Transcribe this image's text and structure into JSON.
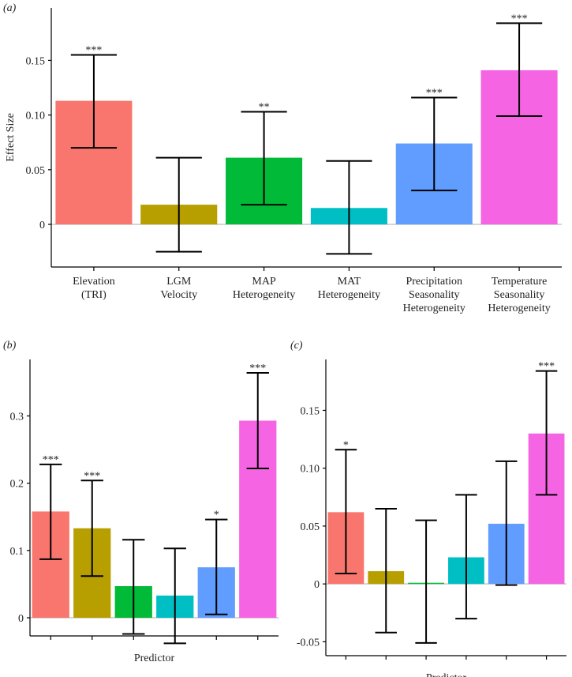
{
  "chart_data": [
    {
      "type": "bar",
      "panel_label": "(a)",
      "ylabel": "Effect Size",
      "categories": [
        [
          "Elevation",
          "(TRI)"
        ],
        [
          "LGM",
          "Velocity"
        ],
        [
          "MAP",
          "Heterogeneity"
        ],
        [
          "MAT",
          "Heterogeneity"
        ],
        [
          "Precipitation",
          "Seasonality",
          "Heterogeneity"
        ],
        [
          "Temperature",
          "Seasonality",
          "Heterogeneity"
        ]
      ],
      "values": [
        0.113,
        0.018,
        0.061,
        0.015,
        0.074,
        0.141
      ],
      "ci_low": [
        0.07,
        -0.025,
        0.018,
        -0.027,
        0.031,
        0.099
      ],
      "ci_high": [
        0.155,
        0.061,
        0.103,
        0.058,
        0.116,
        0.184
      ],
      "annotations": [
        "***",
        null,
        "**",
        null,
        "***",
        "***"
      ],
      "colors": [
        "#F8766D",
        "#B79F00",
        "#00BA38",
        "#00BFC4",
        "#619CFF",
        "#F564E3"
      ],
      "ylim": [
        -0.039,
        0.198
      ],
      "yticks": [
        0,
        0.05,
        {
          "value": 0.1,
          "label": "0.10"
        },
        0.15
      ]
    },
    {
      "type": "bar",
      "panel_label": "(b)",
      "ylabel": "Effect Size",
      "xlabel": "Predictor",
      "categories": [
        null,
        null,
        null,
        null,
        null,
        null
      ],
      "values": [
        0.158,
        0.133,
        0.047,
        0.033,
        0.075,
        0.293
      ],
      "ci_low": [
        0.087,
        0.062,
        -0.024,
        -0.038,
        0.005,
        0.222
      ],
      "ci_high": [
        0.228,
        0.204,
        0.116,
        0.103,
        0.146,
        0.364
      ],
      "annotations": [
        "***",
        "***",
        null,
        null,
        "*",
        "***"
      ],
      "colors": [
        "#F8766D",
        "#B79F00",
        "#00BA38",
        "#00BFC4",
        "#619CFF",
        "#F564E3"
      ],
      "ylim": [
        -0.027,
        0.384
      ],
      "yticks": [
        0,
        0.1,
        0.2,
        0.3
      ]
    },
    {
      "type": "bar",
      "panel_label": "(c)",
      "xlabel": "Predictor",
      "categories": [
        null,
        null,
        null,
        null,
        null,
        null
      ],
      "values": [
        0.062,
        0.011,
        0.001,
        0.023,
        0.052,
        0.13
      ],
      "ci_low": [
        0.009,
        -0.042,
        -0.051,
        -0.03,
        -0.001,
        0.077
      ],
      "ci_high": [
        0.116,
        0.065,
        0.055,
        0.077,
        0.106,
        0.184
      ],
      "annotations": [
        "*",
        null,
        null,
        null,
        null,
        "***"
      ],
      "colors": [
        "#F8766D",
        "#B79F00",
        "#00BA38",
        "#00BFC4",
        "#619CFF",
        "#F564E3"
      ],
      "ylim": [
        -0.062,
        0.194
      ],
      "yticks": [
        -0.05,
        0,
        0.05,
        {
          "value": 0.1,
          "label": "0.10"
        },
        0.15
      ]
    }
  ]
}
